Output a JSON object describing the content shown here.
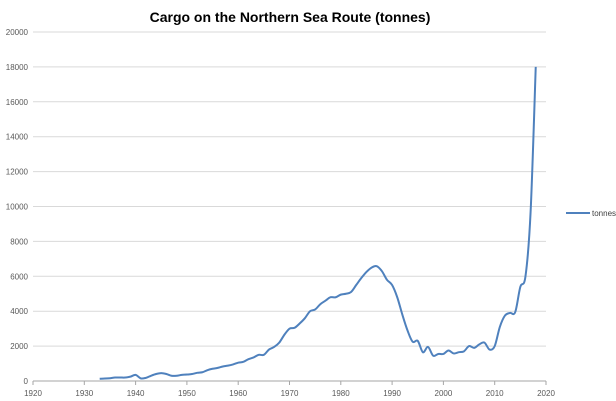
{
  "chart_data": {
    "type": "line",
    "title": "Cargo on the Northern Sea Route (tonnes)",
    "xlabel": "",
    "ylabel": "",
    "xlim": [
      1920,
      2020
    ],
    "ylim": [
      0,
      20000
    ],
    "x_ticks": [
      1920,
      1930,
      1940,
      1950,
      1960,
      1970,
      1980,
      1990,
      2000,
      2010,
      2020
    ],
    "y_ticks": [
      0,
      2000,
      4000,
      6000,
      8000,
      10000,
      12000,
      14000,
      16000,
      18000,
      20000
    ],
    "grid": "horizontal",
    "legend_placement": "right",
    "series": [
      {
        "name": "tonnes",
        "color": "#4f81bd",
        "x": [
          1933,
          1934,
          1935,
          1936,
          1937,
          1938,
          1939,
          1940,
          1941,
          1942,
          1943,
          1944,
          1945,
          1946,
          1947,
          1948,
          1949,
          1950,
          1951,
          1952,
          1953,
          1954,
          1955,
          1956,
          1957,
          1958,
          1959,
          1960,
          1961,
          1962,
          1963,
          1964,
          1965,
          1966,
          1967,
          1968,
          1969,
          1970,
          1971,
          1972,
          1973,
          1974,
          1975,
          1976,
          1977,
          1978,
          1979,
          1980,
          1981,
          1982,
          1983,
          1984,
          1985,
          1986,
          1987,
          1988,
          1989,
          1990,
          1991,
          1992,
          1993,
          1994,
          1995,
          1996,
          1997,
          1998,
          1999,
          2000,
          2001,
          2002,
          2003,
          2004,
          2005,
          2006,
          2007,
          2008,
          2009,
          2010,
          2011,
          2012,
          2013,
          2014,
          2015,
          2016,
          2017,
          2018
        ],
        "values": [
          130,
          140,
          160,
          200,
          200,
          200,
          250,
          350,
          150,
          180,
          300,
          400,
          450,
          400,
          300,
          300,
          350,
          370,
          400,
          470,
          500,
          620,
          700,
          750,
          830,
          880,
          950,
          1050,
          1100,
          1250,
          1350,
          1500,
          1500,
          1800,
          1950,
          2200,
          2650,
          3000,
          3050,
          3300,
          3600,
          4000,
          4100,
          4400,
          4600,
          4800,
          4800,
          4950,
          5000,
          5100,
          5500,
          5900,
          6250,
          6500,
          6580,
          6300,
          5800,
          5500,
          4800,
          3800,
          2900,
          2250,
          2300,
          1650,
          1950,
          1450,
          1550,
          1550,
          1750,
          1580,
          1650,
          1700,
          2000,
          1900,
          2100,
          2200,
          1800,
          2000,
          3100,
          3750,
          3900,
          3950,
          5400,
          6000,
          9700,
          18000
        ]
      }
    ]
  }
}
